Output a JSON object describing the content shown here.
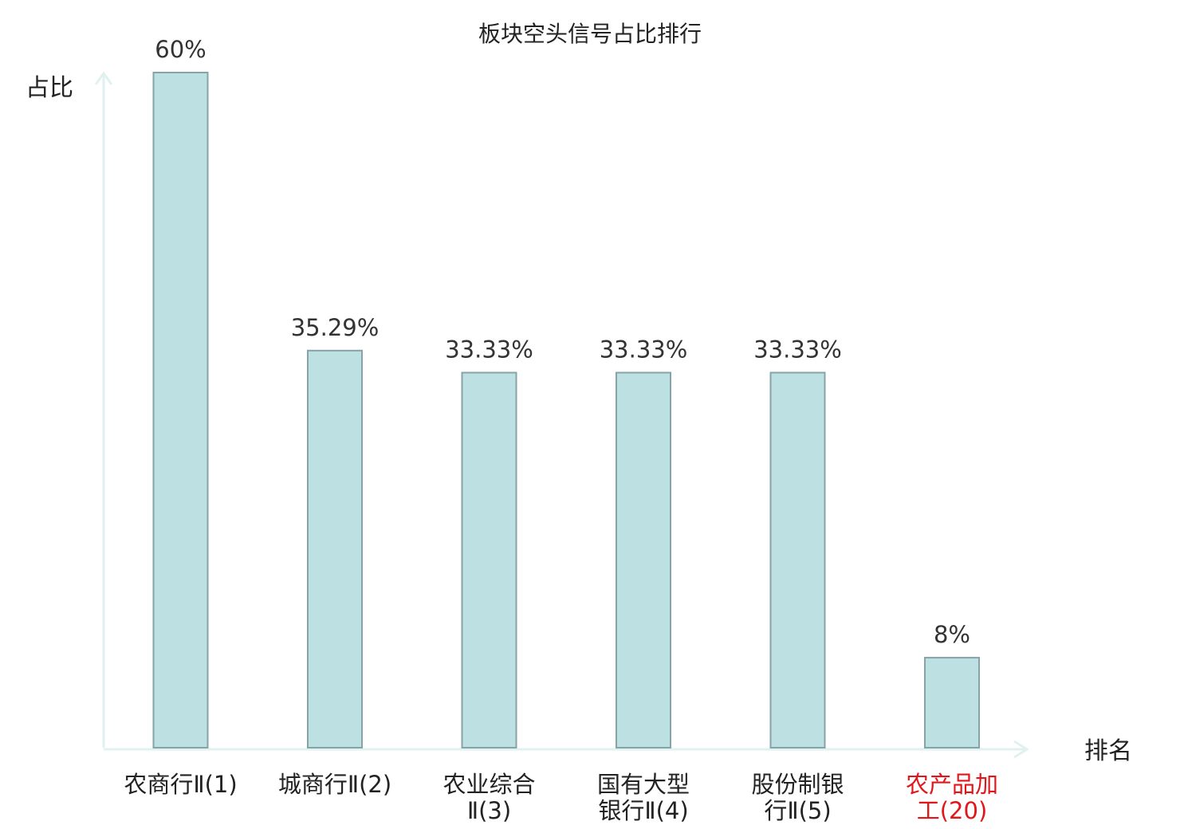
{
  "chart_data": {
    "type": "bar",
    "title": "板块空头信号占比排行",
    "ylabel": "占比",
    "xlabel": "排名",
    "ylim": [
      0,
      60
    ],
    "categories": [
      {
        "lines": [
          "农商行Ⅱ(1)"
        ],
        "highlight": false
      },
      {
        "lines": [
          "城商行Ⅱ(2)"
        ],
        "highlight": false
      },
      {
        "lines": [
          "农业综合",
          "Ⅱ(3)"
        ],
        "highlight": false
      },
      {
        "lines": [
          "国有大型",
          "银行Ⅱ(4)"
        ],
        "highlight": false
      },
      {
        "lines": [
          "股份制银",
          "行Ⅱ(5)"
        ],
        "highlight": false
      },
      {
        "lines": [
          "农产品加",
          "工(20)"
        ],
        "highlight": true
      }
    ],
    "values": [
      60,
      35.29,
      33.33,
      33.33,
      33.33,
      8
    ],
    "value_labels": [
      "60%",
      "35.29%",
      "33.33%",
      "33.33%",
      "33.33%",
      "8%"
    ],
    "grid": false,
    "legend": "none"
  },
  "colors": {
    "bar_fill": "#bde0e3",
    "bar_stroke": "#86a4a8",
    "axis": "#e0f2ef",
    "label": "#222222",
    "highlight": "#e0161b"
  }
}
